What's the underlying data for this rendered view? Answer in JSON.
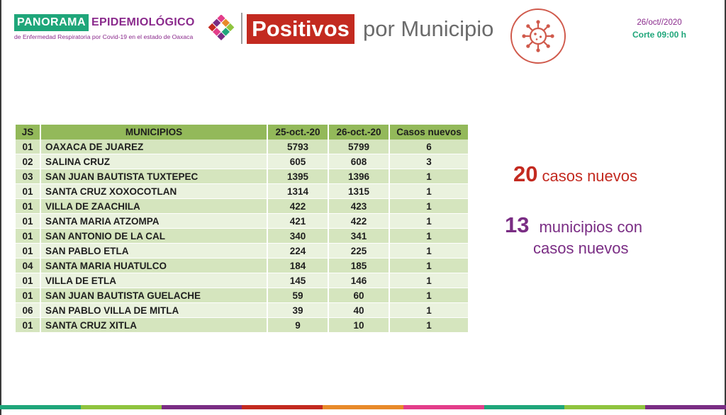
{
  "header": {
    "logo_panorama": "PANORAMA",
    "logo_epidemiologico": "EPIDEMIOLÓGICO",
    "logo_subtitle": "de Enfermedad Respiratoria por Covid-19 en el estado de Oaxaca",
    "title_highlight": "Positivos",
    "title_rest": "por Municipio",
    "date": "26/oct//2020",
    "corte": "Corte 09:00 h"
  },
  "table": {
    "headers": {
      "js": "JS",
      "municipios": "MUNICIPIOS",
      "date1": "25-oct.-20",
      "date2": "26-oct.-20",
      "nuevos": "Casos nuevos"
    },
    "rows": [
      {
        "js": "01",
        "municipio": "OAXACA DE JUAREZ",
        "d1": "5793",
        "d2": "5799",
        "nuevos": "6"
      },
      {
        "js": "02",
        "municipio": "SALINA CRUZ",
        "d1": "605",
        "d2": "608",
        "nuevos": "3"
      },
      {
        "js": "03",
        "municipio": "SAN JUAN BAUTISTA TUXTEPEC",
        "d1": "1395",
        "d2": "1396",
        "nuevos": "1"
      },
      {
        "js": "01",
        "municipio": "SANTA CRUZ XOXOCOTLAN",
        "d1": "1314",
        "d2": "1315",
        "nuevos": "1"
      },
      {
        "js": "01",
        "municipio": "VILLA DE ZAACHILA",
        "d1": "422",
        "d2": "423",
        "nuevos": "1"
      },
      {
        "js": "01",
        "municipio": "SANTA MARIA ATZOMPA",
        "d1": "421",
        "d2": "422",
        "nuevos": "1"
      },
      {
        "js": "01",
        "municipio": "SAN ANTONIO DE LA CAL",
        "d1": "340",
        "d2": "341",
        "nuevos": "1"
      },
      {
        "js": "01",
        "municipio": "SAN PABLO ETLA",
        "d1": "224",
        "d2": "225",
        "nuevos": "1"
      },
      {
        "js": "04",
        "municipio": "SANTA MARIA HUATULCO",
        "d1": "184",
        "d2": "185",
        "nuevos": "1"
      },
      {
        "js": "01",
        "municipio": "VILLA DE ETLA",
        "d1": "145",
        "d2": "146",
        "nuevos": "1"
      },
      {
        "js": "01",
        "municipio": "SAN JUAN BAUTISTA GUELACHE",
        "d1": "59",
        "d2": "60",
        "nuevos": "1"
      },
      {
        "js": "06",
        "municipio": "SAN PABLO VILLA DE MITLA",
        "d1": "39",
        "d2": "40",
        "nuevos": "1"
      },
      {
        "js": "01",
        "municipio": "SANTA CRUZ XITLA",
        "d1": "9",
        "d2": "10",
        "nuevos": "1"
      }
    ]
  },
  "summary": {
    "cases_number": "20",
    "cases_text": "casos nuevos",
    "mun_number": "13",
    "mun_text_line1": "municipios con",
    "mun_text_line2": "casos nuevos"
  },
  "icons": {
    "logo_mark": "colored-diamond-mosaic-icon",
    "virus": "virus-icon"
  },
  "colors": {
    "brand_green": "#1fa67a",
    "brand_purple": "#8a2a8c",
    "accent_red": "#c32a20",
    "table_header": "#93b95a",
    "row_dark": "#d5e5be",
    "row_light": "#eaf2de",
    "stripe": [
      "#1fa67a",
      "#8fc43f",
      "#7a2d84",
      "#c32a20",
      "#e88a2a",
      "#e33d8a",
      "#1fa67a",
      "#8fc43f",
      "#7a2d84"
    ]
  }
}
